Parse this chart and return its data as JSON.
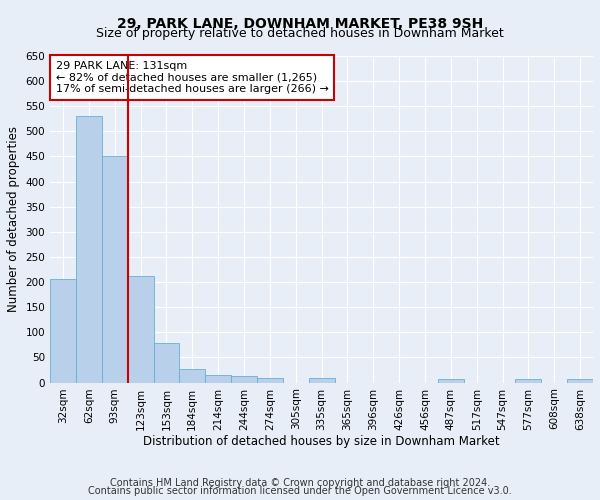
{
  "title": "29, PARK LANE, DOWNHAM MARKET, PE38 9SH",
  "subtitle": "Size of property relative to detached houses in Downham Market",
  "xlabel": "Distribution of detached houses by size in Downham Market",
  "ylabel": "Number of detached properties",
  "categories": [
    "32sqm",
    "62sqm",
    "93sqm",
    "123sqm",
    "153sqm",
    "184sqm",
    "214sqm",
    "244sqm",
    "274sqm",
    "305sqm",
    "335sqm",
    "365sqm",
    "396sqm",
    "426sqm",
    "456sqm",
    "487sqm",
    "517sqm",
    "547sqm",
    "577sqm",
    "608sqm",
    "638sqm"
  ],
  "values": [
    207,
    530,
    450,
    212,
    78,
    27,
    15,
    12,
    8,
    0,
    8,
    0,
    0,
    0,
    0,
    6,
    0,
    0,
    6,
    0,
    6
  ],
  "bar_color": "#b8d0ea",
  "bar_edge_color": "#6aaed6",
  "vline_x": 2.5,
  "vline_color": "#cc0000",
  "annotation_text": "29 PARK LANE: 131sqm\n← 82% of detached houses are smaller (1,265)\n17% of semi-detached houses are larger (266) →",
  "annotation_box_color": "#ffffff",
  "annotation_box_edge": "#cc0000",
  "ylim": [
    0,
    650
  ],
  "yticks": [
    0,
    50,
    100,
    150,
    200,
    250,
    300,
    350,
    400,
    450,
    500,
    550,
    600,
    650
  ],
  "footer1": "Contains HM Land Registry data © Crown copyright and database right 2024.",
  "footer2": "Contains public sector information licensed under the Open Government Licence v3.0.",
  "bg_color": "#e8eef8",
  "plot_bg_color": "#e8eef8",
  "grid_color": "#ffffff",
  "title_fontsize": 10,
  "subtitle_fontsize": 9,
  "axis_label_fontsize": 8.5,
  "tick_fontsize": 7.5,
  "footer_fontsize": 7,
  "annot_fontsize": 8
}
